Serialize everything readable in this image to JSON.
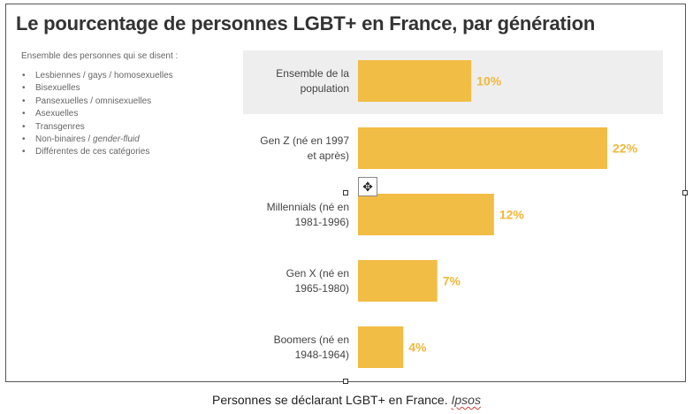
{
  "chart_data": {
    "type": "bar",
    "orientation": "horizontal",
    "title": "Le pourcentage de personnes LGBT+ en France, par génération",
    "categories": [
      [
        "Ensemble de la",
        "population"
      ],
      [
        "Gen Z (né en 1997",
        "et après)"
      ],
      [
        "Millennials (né en",
        "1981-1996)"
      ],
      [
        "Gen X (né en",
        "1965-1980)"
      ],
      [
        "Boomers (né en",
        "1948-1964)"
      ]
    ],
    "values": [
      10,
      22,
      12,
      7,
      4
    ],
    "value_labels": [
      "10%",
      "22%",
      "12%",
      "7%",
      "4%"
    ],
    "unit": "%",
    "xlim": [
      0,
      22
    ],
    "highlighted_category": 0,
    "bar_color": "#f2bd45",
    "label_color": "#f2b73a",
    "highlight_color": "#eeeeee",
    "grid": false
  },
  "legend": {
    "intro": "Ensemble des personnes qui se disent :",
    "items": [
      "Lesbiennes / gays / homosexuelles",
      "Bisexuelles",
      "Pansexuelles / omnisexuelles",
      "Asexuelles",
      "Transgenres"
    ],
    "item_nonbinary": "Non-binaires / ",
    "item_nonbinary_italic": "gender-fluid",
    "item_last": "Différentes de ces catégories"
  },
  "caption": {
    "text": "Personnes se déclarant LGBT+ en France. ",
    "source": "Ipsos"
  },
  "ui": {
    "move_icon": "four-way-arrow-icon"
  }
}
